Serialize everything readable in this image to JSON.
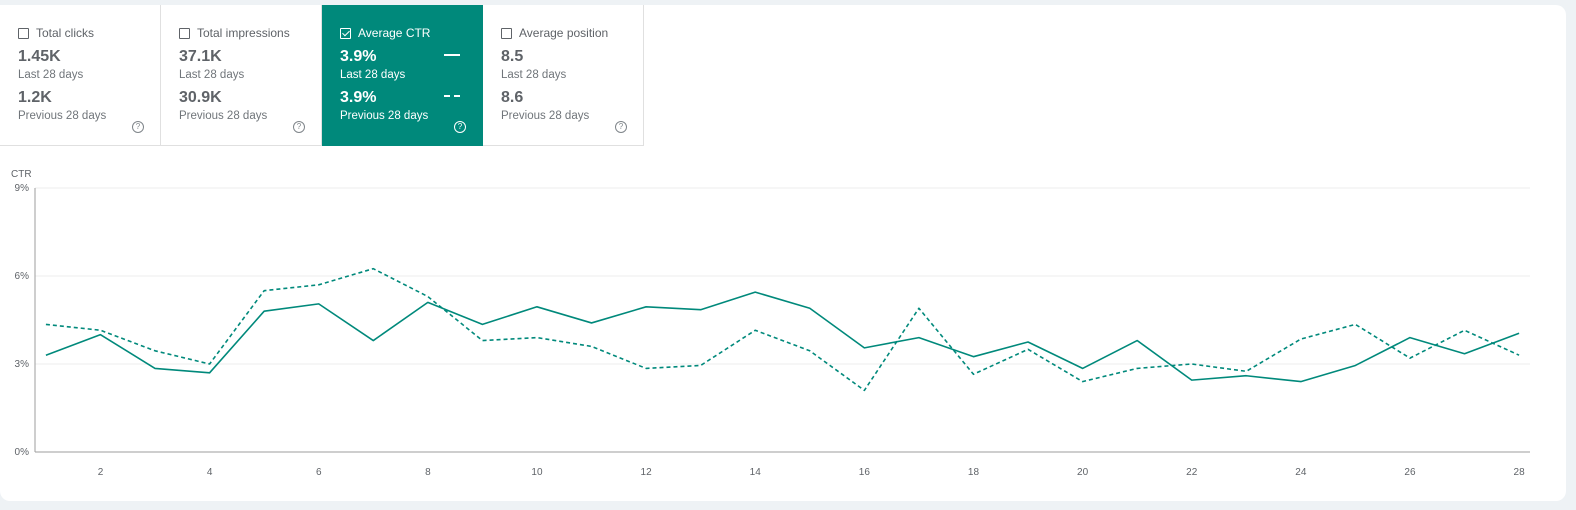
{
  "metrics": [
    {
      "label": "Total clicks",
      "current": "1.45K",
      "current_period": "Last 28 days",
      "previous": "1.2K",
      "previous_period": "Previous 28 days",
      "checked": false
    },
    {
      "label": "Total impressions",
      "current": "37.1K",
      "current_period": "Last 28 days",
      "previous": "30.9K",
      "previous_period": "Previous 28 days",
      "checked": false
    },
    {
      "label": "Average CTR",
      "current": "3.9%",
      "current_period": "Last 28 days",
      "previous": "3.9%",
      "previous_period": "Previous 28 days",
      "checked": true
    },
    {
      "label": "Average position",
      "current": "8.5",
      "current_period": "Last 28 days",
      "previous": "8.6",
      "previous_period": "Previous 28 days",
      "checked": false
    }
  ],
  "help_glyph": "?",
  "colors": {
    "accent": "#00897b",
    "grid": "#ececec",
    "axis": "#9e9e9e"
  },
  "chart_data": {
    "type": "line",
    "ylabel": "CTR",
    "ylim": [
      0,
      9
    ],
    "yticks": [
      "0%",
      "3%",
      "6%",
      "9%"
    ],
    "xlim": [
      0.8,
      28.2
    ],
    "xticks": [
      2,
      4,
      6,
      8,
      10,
      12,
      14,
      16,
      18,
      20,
      22,
      24,
      26,
      28
    ],
    "x": [
      1,
      2,
      3,
      4,
      5,
      6,
      7,
      8,
      9,
      10,
      11,
      12,
      13,
      14,
      15,
      16,
      17,
      18,
      19,
      20,
      21,
      22,
      23,
      24,
      25,
      26,
      27,
      28
    ],
    "series": [
      {
        "name": "Last 28 days",
        "style": "solid",
        "values": [
          3.3,
          4.0,
          2.85,
          2.7,
          4.8,
          5.05,
          3.8,
          5.1,
          4.35,
          4.95,
          4.4,
          4.95,
          4.85,
          5.45,
          4.9,
          3.55,
          3.9,
          3.25,
          3.75,
          2.85,
          3.8,
          2.45,
          2.6,
          2.4,
          2.95,
          3.9,
          3.35,
          4.05
        ]
      },
      {
        "name": "Previous 28 days",
        "style": "dashed",
        "values": [
          4.35,
          4.15,
          3.45,
          3.0,
          5.5,
          5.7,
          6.25,
          5.3,
          3.8,
          3.9,
          3.6,
          2.85,
          2.95,
          4.15,
          3.45,
          2.1,
          4.9,
          2.65,
          3.5,
          2.4,
          2.85,
          3.0,
          2.75,
          3.85,
          4.35,
          3.2,
          4.15,
          3.3
        ]
      }
    ]
  }
}
